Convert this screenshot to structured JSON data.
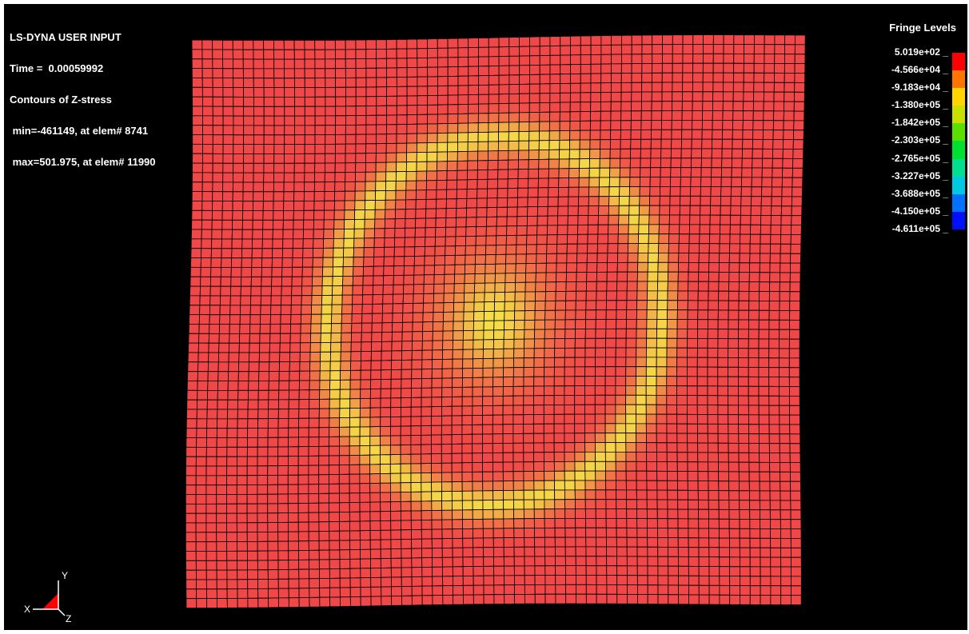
{
  "header": {
    "title": "LS-DYNA USER INPUT",
    "time": "Time =  0.00059992",
    "contour": "Contours of Z-stress",
    "min": " min=-461149, at elem# 8741",
    "max": " max=501.975, at elem# 11990"
  },
  "legend": {
    "title": "Fringe Levels",
    "levels": [
      "5.019e+02",
      "-4.566e+04",
      "-9.183e+04",
      "-1.380e+05",
      "-1.842e+05",
      "-2.303e+05",
      "-2.765e+05",
      "-3.227e+05",
      "-3.688e+05",
      "-4.150e+05",
      "-4.611e+05"
    ],
    "colors": [
      "#ff0000",
      "#ff7400",
      "#ffd400",
      "#c8e000",
      "#5ae000",
      "#00e030",
      "#00e090",
      "#00c8e0",
      "#0070ff",
      "#0010ff"
    ]
  },
  "triad": {
    "x_label": "X",
    "y_label": "Y",
    "z_label": "Z"
  },
  "colors": {
    "background": "#000000",
    "field_base": "#f04848",
    "field_mid": "#f08848",
    "field_peak": "#f4e048",
    "mesh_line": "#000000"
  }
}
